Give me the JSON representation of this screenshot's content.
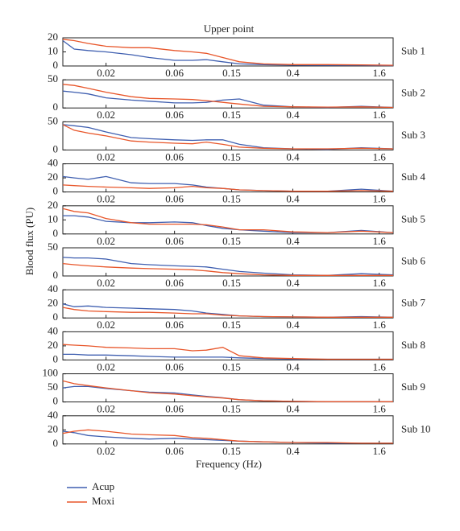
{
  "title": "Upper point",
  "x_label": "Frequency (Hz)",
  "y_label": "Blood flux (PU)",
  "chart_data": [
    {
      "type": "line",
      "title": "Sub 1",
      "xscale": "log",
      "x": [
        0.01,
        0.012,
        0.015,
        0.02,
        0.03,
        0.04,
        0.06,
        0.08,
        0.1,
        0.13,
        0.17,
        0.25,
        0.4,
        0.7,
        1.2,
        2.0
      ],
      "xlim": [
        0.01,
        2
      ],
      "xticks": [
        0.02,
        0.06,
        0.15,
        0.4,
        1.6
      ],
      "ylim": [
        0,
        20
      ],
      "yticks": [
        0,
        10,
        20
      ],
      "series": [
        {
          "name": "Acup",
          "color": "#3f5fb0",
          "values": [
            18,
            12,
            11,
            10,
            8,
            6,
            4,
            4,
            4.5,
            3,
            1.5,
            1,
            0.7,
            0.5,
            0.5,
            0.3
          ]
        },
        {
          "name": "Moxi",
          "color": "#e8562a",
          "values": [
            19,
            18,
            16,
            14,
            13,
            13,
            11,
            10,
            9,
            6,
            3,
            1.5,
            1,
            1,
            0.8,
            0.5
          ]
        }
      ]
    },
    {
      "type": "line",
      "title": "Sub 2",
      "xscale": "log",
      "x": [
        0.01,
        0.012,
        0.015,
        0.02,
        0.03,
        0.04,
        0.06,
        0.08,
        0.1,
        0.13,
        0.17,
        0.25,
        0.4,
        0.7,
        1.2,
        2.0
      ],
      "xlim": [
        0.01,
        2
      ],
      "xticks": [
        0.02,
        0.06,
        0.15,
        0.4,
        1.6
      ],
      "ylim": [
        0,
        50
      ],
      "yticks": [
        0,
        50
      ],
      "series": [
        {
          "name": "Acup",
          "color": "#3f5fb0",
          "values": [
            30,
            28,
            25,
            18,
            14,
            12,
            9,
            9,
            10,
            14,
            16,
            5,
            2,
            1,
            3,
            1
          ]
        },
        {
          "name": "Moxi",
          "color": "#e8562a",
          "values": [
            42,
            40,
            35,
            28,
            20,
            17,
            16,
            15,
            13,
            10,
            7,
            3,
            2,
            1.5,
            2,
            1
          ]
        }
      ]
    },
    {
      "type": "line",
      "title": "Sub 3",
      "xscale": "log",
      "x": [
        0.01,
        0.012,
        0.015,
        0.02,
        0.03,
        0.04,
        0.06,
        0.08,
        0.1,
        0.13,
        0.17,
        0.25,
        0.4,
        0.7,
        1.2,
        2.0
      ],
      "xlim": [
        0.01,
        2
      ],
      "xticks": [
        0.02,
        0.06,
        0.15,
        0.4,
        1.6
      ],
      "ylim": [
        0,
        50
      ],
      "yticks": [
        0,
        50
      ],
      "series": [
        {
          "name": "Acup",
          "color": "#3f5fb0",
          "values": [
            45,
            43,
            40,
            32,
            22,
            20,
            18,
            17,
            18,
            18,
            10,
            4,
            2,
            1,
            4,
            2
          ]
        },
        {
          "name": "Moxi",
          "color": "#e8562a",
          "values": [
            45,
            35,
            30,
            25,
            16,
            14,
            12,
            11,
            14,
            10,
            5,
            3,
            2,
            2,
            3,
            2
          ]
        }
      ]
    },
    {
      "type": "line",
      "title": "Sub 4",
      "xscale": "log",
      "x": [
        0.01,
        0.012,
        0.015,
        0.02,
        0.03,
        0.04,
        0.06,
        0.08,
        0.1,
        0.13,
        0.17,
        0.25,
        0.4,
        0.7,
        1.2,
        2.0
      ],
      "xlim": [
        0.01,
        2
      ],
      "xticks": [
        0.02,
        0.06,
        0.15,
        0.4,
        1.6
      ],
      "ylim": [
        0,
        40
      ],
      "yticks": [
        0,
        20,
        40
      ],
      "series": [
        {
          "name": "Acup",
          "color": "#3f5fb0",
          "values": [
            22,
            20,
            18,
            22,
            13,
            12,
            12,
            10,
            7,
            5,
            3,
            2,
            1,
            1,
            4,
            1
          ]
        },
        {
          "name": "Moxi",
          "color": "#e8562a",
          "values": [
            10,
            9,
            8,
            7,
            6,
            5,
            6,
            8,
            6,
            5,
            3,
            2,
            1,
            1,
            2,
            1
          ]
        }
      ]
    },
    {
      "type": "line",
      "title": "Sub 5",
      "xscale": "log",
      "x": [
        0.01,
        0.012,
        0.015,
        0.02,
        0.03,
        0.04,
        0.06,
        0.08,
        0.1,
        0.13,
        0.17,
        0.25,
        0.4,
        0.7,
        1.2,
        2.0
      ],
      "xlim": [
        0.01,
        2
      ],
      "xticks": [
        0.02,
        0.06,
        0.15,
        0.4,
        1.6
      ],
      "ylim": [
        0,
        20
      ],
      "yticks": [
        0,
        10,
        20
      ],
      "series": [
        {
          "name": "Acup",
          "color": "#3f5fb0",
          "values": [
            13,
            13,
            12,
            9,
            8,
            8,
            8.5,
            8,
            6,
            4,
            3,
            2,
            1,
            1,
            2.5,
            1
          ]
        },
        {
          "name": "Moxi",
          "color": "#e8562a",
          "values": [
            18,
            16,
            15,
            11,
            8,
            7,
            7,
            7,
            6.5,
            5,
            3,
            3,
            1.5,
            1,
            2,
            1
          ]
        }
      ]
    },
    {
      "type": "line",
      "title": "Sub 6",
      "xscale": "log",
      "x": [
        0.01,
        0.012,
        0.015,
        0.02,
        0.03,
        0.04,
        0.06,
        0.08,
        0.1,
        0.13,
        0.17,
        0.25,
        0.4,
        0.7,
        1.2,
        2.0
      ],
      "xlim": [
        0.01,
        2
      ],
      "xticks": [
        0.02,
        0.06,
        0.15,
        0.4,
        1.6
      ],
      "ylim": [
        0,
        50
      ],
      "yticks": [
        0,
        50
      ],
      "series": [
        {
          "name": "Acup",
          "color": "#3f5fb0",
          "values": [
            33,
            32,
            32,
            30,
            22,
            20,
            18,
            17,
            16,
            12,
            8,
            5,
            2,
            1,
            4,
            2
          ]
        },
        {
          "name": "Moxi",
          "color": "#e8562a",
          "values": [
            22,
            20,
            18,
            16,
            14,
            13,
            12,
            11,
            9,
            6,
            4,
            2,
            1,
            1,
            1,
            1
          ]
        }
      ]
    },
    {
      "type": "line",
      "title": "Sub 7",
      "xscale": "log",
      "x": [
        0.01,
        0.012,
        0.015,
        0.02,
        0.03,
        0.04,
        0.06,
        0.08,
        0.1,
        0.13,
        0.17,
        0.25,
        0.4,
        0.7,
        1.2,
        2.0
      ],
      "xlim": [
        0.01,
        2
      ],
      "xticks": [
        0.02,
        0.06,
        0.15,
        0.4,
        1.6
      ],
      "ylim": [
        0,
        40
      ],
      "yticks": [
        0,
        20,
        40
      ],
      "series": [
        {
          "name": "Acup",
          "color": "#3f5fb0",
          "values": [
            20,
            16,
            17,
            15,
            14,
            13,
            12,
            10,
            7,
            5,
            3,
            2,
            1.5,
            1,
            2,
            1
          ]
        },
        {
          "name": "Moxi",
          "color": "#e8562a",
          "values": [
            15,
            12,
            10,
            9,
            8,
            8,
            7,
            6,
            6,
            4,
            3,
            2,
            1.5,
            1,
            1,
            1
          ]
        }
      ]
    },
    {
      "type": "line",
      "title": "Sub 8",
      "xscale": "log",
      "x": [
        0.01,
        0.012,
        0.015,
        0.02,
        0.03,
        0.04,
        0.06,
        0.08,
        0.1,
        0.13,
        0.17,
        0.25,
        0.4,
        0.7,
        1.2,
        2.0
      ],
      "xlim": [
        0.01,
        2
      ],
      "xticks": [
        0.02,
        0.06,
        0.15,
        0.4,
        1.6
      ],
      "ylim": [
        0,
        40
      ],
      "yticks": [
        0,
        20,
        40
      ],
      "series": [
        {
          "name": "Acup",
          "color": "#3f5fb0",
          "values": [
            8,
            8,
            7,
            7,
            6,
            5,
            4,
            4,
            4,
            4,
            3,
            2,
            1,
            1,
            1,
            1
          ]
        },
        {
          "name": "Moxi",
          "color": "#e8562a",
          "values": [
            22,
            21,
            20,
            18,
            17,
            16,
            16,
            13,
            14,
            18,
            6,
            3,
            2,
            1,
            1,
            1
          ]
        }
      ]
    },
    {
      "type": "line",
      "title": "Sub 9",
      "xscale": "log",
      "x": [
        0.01,
        0.012,
        0.015,
        0.02,
        0.03,
        0.04,
        0.06,
        0.08,
        0.1,
        0.13,
        0.17,
        0.25,
        0.4,
        0.7,
        1.2,
        2.0
      ],
      "xlim": [
        0.01,
        2
      ],
      "xticks": [
        0.02,
        0.06,
        0.15,
        0.4,
        1.6
      ],
      "ylim": [
        0,
        100
      ],
      "yticks": [
        0,
        50,
        100
      ],
      "series": [
        {
          "name": "Acup",
          "color": "#3f5fb0",
          "values": [
            50,
            55,
            55,
            48,
            40,
            35,
            32,
            25,
            20,
            15,
            8,
            4,
            2,
            1,
            1,
            1
          ]
        },
        {
          "name": "Moxi",
          "color": "#e8562a",
          "values": [
            75,
            65,
            58,
            50,
            40,
            33,
            28,
            22,
            18,
            14,
            8,
            4,
            2,
            1,
            1,
            1
          ]
        }
      ]
    },
    {
      "type": "line",
      "title": "Sub 10",
      "xscale": "log",
      "x": [
        0.01,
        0.012,
        0.015,
        0.02,
        0.03,
        0.04,
        0.06,
        0.08,
        0.1,
        0.13,
        0.17,
        0.25,
        0.4,
        0.7,
        1.2,
        2.0
      ],
      "xlim": [
        0.01,
        2
      ],
      "xticks": [
        0.02,
        0.06,
        0.15,
        0.4,
        1.6
      ],
      "ylim": [
        0,
        40
      ],
      "yticks": [
        0,
        20,
        40
      ],
      "series": [
        {
          "name": "Acup",
          "color": "#3f5fb0",
          "values": [
            18,
            16,
            12,
            10,
            8,
            7,
            8,
            7,
            6,
            5,
            4,
            3,
            2,
            1,
            1,
            1
          ]
        },
        {
          "name": "Moxi",
          "color": "#e8562a",
          "values": [
            15,
            18,
            20,
            18,
            14,
            13,
            12,
            9,
            8,
            6,
            4,
            3,
            2,
            2,
            1,
            1
          ]
        }
      ]
    }
  ]
}
